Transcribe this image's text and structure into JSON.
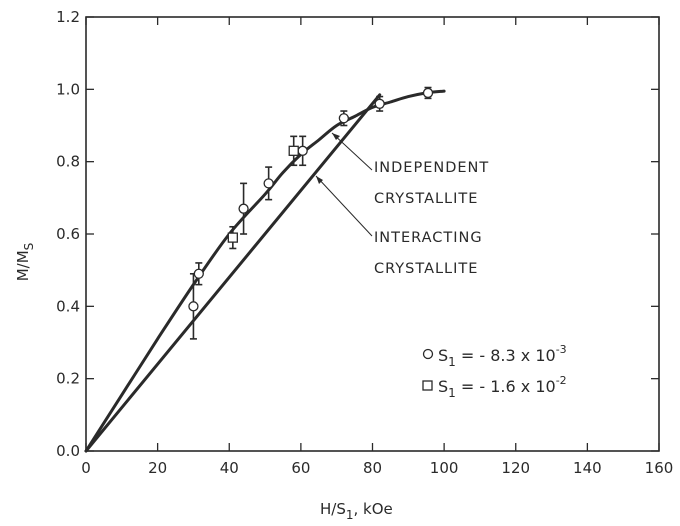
{
  "chart_data": {
    "type": "line",
    "xlabel": "H/S",
    "xlabel_sub": "1",
    "xlabel_unit": ", kOe",
    "ylabel": "M/M",
    "ylabel_sub": "S",
    "xlim": [
      0,
      160
    ],
    "ylim": [
      0,
      1.2
    ],
    "x_ticks": [
      0,
      20,
      40,
      60,
      80,
      100,
      120,
      140,
      160
    ],
    "x_tick_labels": [
      "0",
      "20",
      "40",
      "60",
      "80",
      "100",
      "120",
      "140",
      "160"
    ],
    "y_ticks": [
      0.0,
      0.2,
      0.4,
      0.6,
      0.8,
      1.0,
      1.2
    ],
    "y_tick_labels": [
      "0.0",
      "0.2",
      "0.4",
      "0.6",
      "0.8",
      "1.0",
      "1.2"
    ],
    "grid": false,
    "series": [
      {
        "name": "INDEPENDENT CRYSTALLITE",
        "label_lines": [
          "INDEPENDENT",
          "CRYSTALLITE"
        ],
        "x": [
          0,
          10,
          20,
          30,
          40,
          50,
          55,
          60,
          65,
          70,
          75,
          80,
          85,
          90,
          95,
          100
        ],
        "y": [
          0,
          0.155,
          0.31,
          0.46,
          0.6,
          0.71,
          0.77,
          0.82,
          0.86,
          0.9,
          0.925,
          0.95,
          0.965,
          0.98,
          0.99,
          0.995
        ]
      },
      {
        "name": "INTERACTING CRYSTALLITE",
        "label_lines": [
          "INTERACTING",
          "CRYSTALLITE"
        ],
        "x": [
          0,
          82
        ],
        "y": [
          0,
          0.985
        ]
      }
    ],
    "data_points": [
      {
        "legend": "circle",
        "x": 30,
        "y": 0.4,
        "err": 0.09
      },
      {
        "legend": "circle",
        "x": 31.5,
        "y": 0.49,
        "err": 0.03
      },
      {
        "legend": "circle",
        "x": 44,
        "y": 0.67,
        "err": 0.07
      },
      {
        "legend": "circle",
        "x": 51,
        "y": 0.74,
        "err": 0.045
      },
      {
        "legend": "circle",
        "x": 60.5,
        "y": 0.83,
        "err": 0.04
      },
      {
        "legend": "circle",
        "x": 72,
        "y": 0.92,
        "err": 0.02
      },
      {
        "legend": "circle",
        "x": 82,
        "y": 0.96,
        "err": 0.02
      },
      {
        "legend": "circle",
        "x": 95.5,
        "y": 0.99,
        "err": 0.015
      },
      {
        "legend": "square",
        "x": 41,
        "y": 0.59,
        "err": 0.03
      },
      {
        "legend": "square",
        "x": 58,
        "y": 0.83,
        "err": 0.04
      }
    ],
    "legend": {
      "position": "bottom-right",
      "entries": [
        {
          "marker": "circle",
          "label": "S",
          "sub": "1",
          "value": " = - 8.3 x 10",
          "exp": "-3"
        },
        {
          "marker": "square",
          "label": "S",
          "sub": "1",
          "value": " = - 1.6 x 10",
          "exp": "-2"
        }
      ]
    }
  }
}
